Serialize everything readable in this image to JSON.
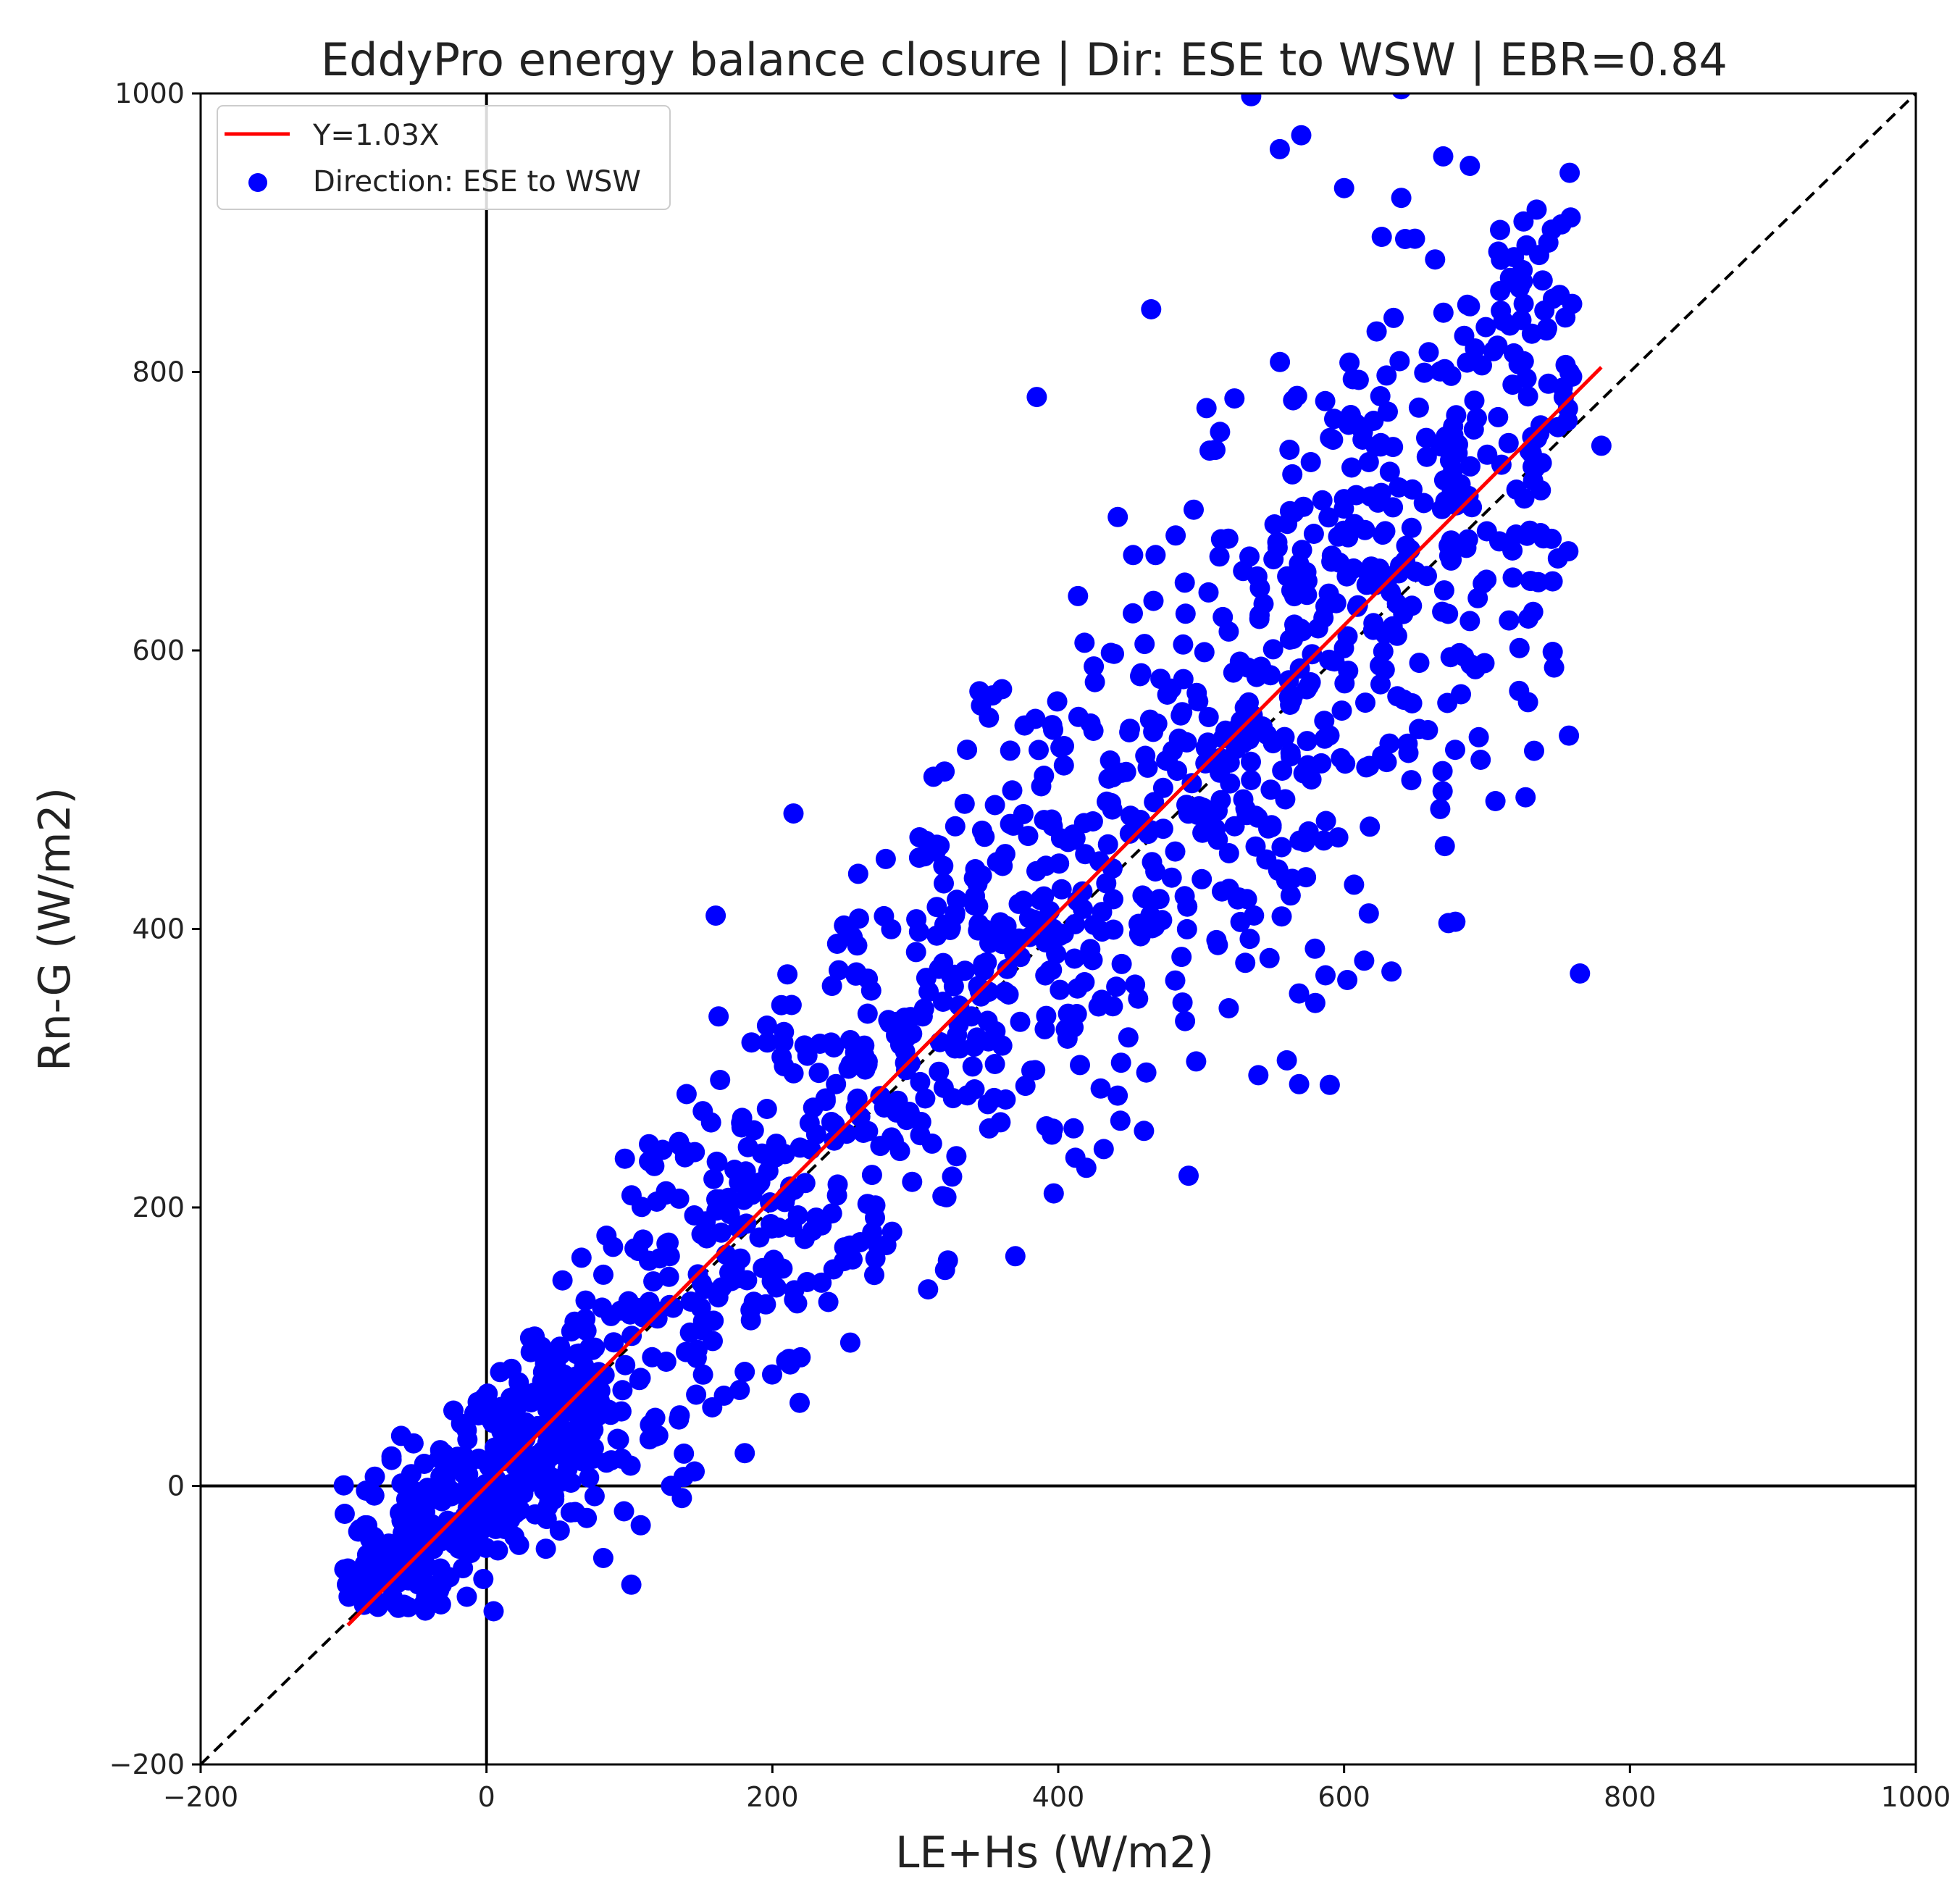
{
  "chart_data": {
    "type": "scatter",
    "title": "EddyPro energy balance closure | Dir: ESE to WSW | EBR=0.84",
    "xlabel": "LE+Hs (W/m2)",
    "ylabel": "Rn-G (W/m2)",
    "xlim": [
      -200,
      1000
    ],
    "ylim": [
      -200,
      1000
    ],
    "xticks": [
      -200,
      0,
      200,
      400,
      600,
      800,
      1000
    ],
    "yticks": [
      -200,
      0,
      200,
      400,
      600,
      800,
      1000
    ],
    "grid": false,
    "legend_position": "top-left",
    "reference_lines": [
      {
        "kind": "zero-axis",
        "x": 0,
        "color": "#000000"
      },
      {
        "kind": "zero-axis",
        "y": 0,
        "color": "#000000"
      },
      {
        "kind": "1:1",
        "style": "dashed",
        "color": "#000000",
        "x": [
          -200,
          1000
        ],
        "y": [
          -200,
          1000
        ]
      }
    ],
    "series": [
      {
        "name": "Y=1.03X",
        "type": "line",
        "color": "#ff0000",
        "slope": 1.03,
        "x": [
          -97,
          780
        ],
        "y": [
          -99.9,
          803.4
        ]
      },
      {
        "name": "Direction: ESE to WSW",
        "type": "scatter",
        "color": "#0000ff",
        "count": 1500,
        "x_range": [
          -100,
          780
        ],
        "y_range": [
          -90,
          1000
        ],
        "point_spread_sd": 70,
        "outliers": [
          {
            "x": 370,
            "y": 165
          },
          {
            "x": 765,
            "y": 368
          },
          {
            "x": 590,
            "y": 288
          },
          {
            "x": 540,
            "y": 295
          },
          {
            "x": 460,
            "y": 255
          },
          {
            "x": 555,
            "y": 960
          },
          {
            "x": 570,
            "y": 970
          },
          {
            "x": 688,
            "y": 948
          },
          {
            "x": 600,
            "y": 932
          },
          {
            "x": 640,
            "y": 925
          },
          {
            "x": 725,
            "y": 865
          },
          {
            "x": 755,
            "y": 805
          },
          {
            "x": 780,
            "y": 747
          },
          {
            "x": 465,
            "y": 845
          },
          {
            "x": 385,
            "y": 782
          },
          {
            "x": 5,
            "y": -90
          },
          {
            "x": -85,
            "y": -85
          },
          {
            "x": 535,
            "y": 998
          },
          {
            "x": 640,
            "y": 1003
          }
        ]
      }
    ]
  }
}
